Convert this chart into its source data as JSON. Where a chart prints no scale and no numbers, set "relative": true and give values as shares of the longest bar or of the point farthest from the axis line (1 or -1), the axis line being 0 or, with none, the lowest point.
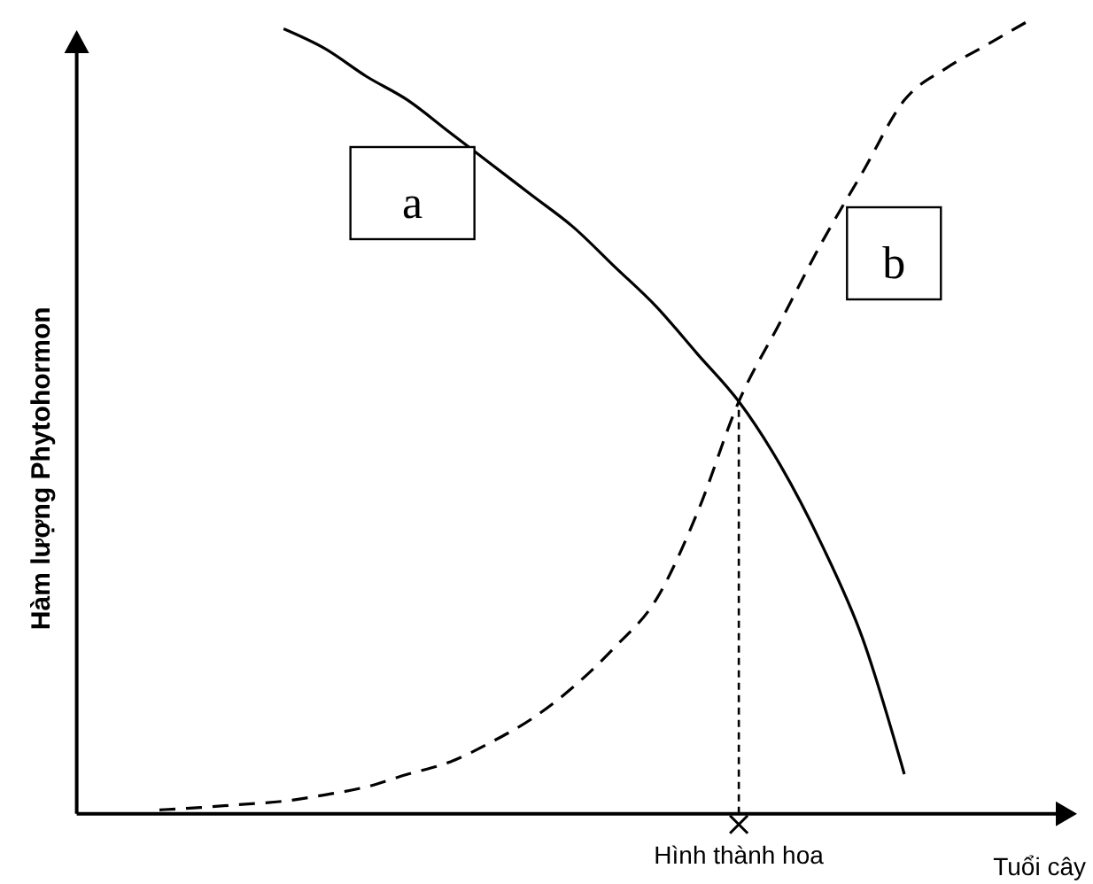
{
  "chart_data": {
    "type": "line",
    "relative": true,
    "xlabel": "Tuổi cây",
    "ylabel": "Hàm lượng Phytohormon",
    "categories": [
      null,
      null,
      null,
      null,
      null,
      null,
      null,
      null,
      null,
      null,
      null,
      null,
      null,
      null,
      null,
      null,
      null,
      null,
      null,
      null,
      null,
      null,
      null,
      null
    ],
    "series": [
      {
        "name": "a",
        "color": "#000000",
        "line_style": "solid",
        "values": [
          null,
          null,
          null,
          null,
          null,
          0.99,
          0.965,
          0.93,
          0.9,
          0.86,
          0.82,
          0.78,
          0.74,
          0.69,
          0.64,
          0.58,
          0.52,
          0.44,
          0.34,
          0.22,
          0.05,
          null,
          null,
          null
        ]
      },
      {
        "name": "b",
        "color": "#000000",
        "line_style": "dashed",
        "values": [
          null,
          null,
          0.005,
          0.008,
          0.012,
          0.016,
          0.024,
          0.034,
          0.05,
          0.065,
          0.09,
          0.12,
          0.16,
          0.21,
          0.27,
          0.38,
          0.52,
          0.62,
          0.72,
          0.81,
          0.9,
          0.94,
          0.97,
          1.0
        ]
      }
    ],
    "annotations": [
      "Hình thành hoa"
    ]
  }
}
